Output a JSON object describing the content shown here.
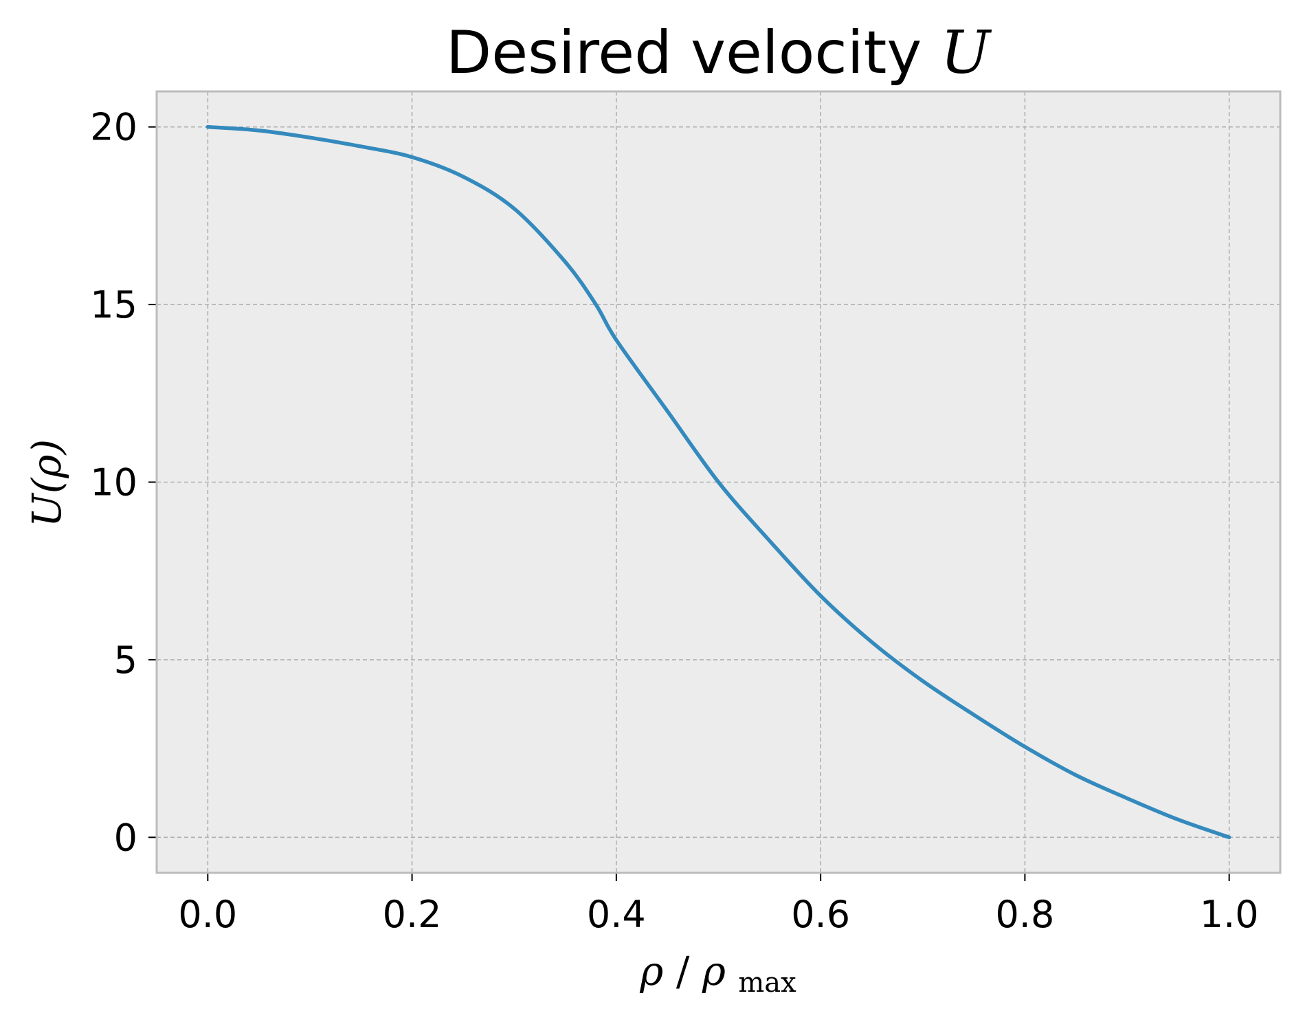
{
  "chart_data": {
    "type": "line",
    "title": "Desired velocity U",
    "title_parts": {
      "text": "Desired velocity ",
      "math": "U"
    },
    "xlabel": "ρ/ρmax",
    "xlabel_parts": {
      "rho": "ρ",
      "slash": "/",
      "rho2": "ρ",
      "sub": "max"
    },
    "ylabel": "U(ρ)",
    "xlim": [
      -0.05,
      1.05
    ],
    "ylim": [
      -1.0,
      21.0
    ],
    "xticks": [
      0.0,
      0.2,
      0.4,
      0.6,
      0.8,
      1.0
    ],
    "xtick_labels": [
      "0.0",
      "0.2",
      "0.4",
      "0.6",
      "0.8",
      "1.0"
    ],
    "yticks": [
      0,
      5,
      10,
      15,
      20
    ],
    "ytick_labels": [
      "0",
      "5",
      "10",
      "15",
      "20"
    ],
    "grid": true,
    "background_color": "#ececec",
    "grid_color": "#b0b0b0",
    "spine_color": "#bcbcbc",
    "series": [
      {
        "color": "#348abd",
        "x": [
          0.0,
          0.05,
          0.1,
          0.15,
          0.2,
          0.25,
          0.3,
          0.35,
          0.38,
          0.4,
          0.45,
          0.5,
          0.55,
          0.6,
          0.65,
          0.7,
          0.75,
          0.8,
          0.85,
          0.9,
          0.95,
          1.0
        ],
        "y": [
          20.0,
          19.9,
          19.7,
          19.45,
          19.15,
          18.6,
          17.7,
          16.2,
          15.0,
          14.0,
          12.0,
          10.0,
          8.35,
          6.8,
          5.5,
          4.4,
          3.45,
          2.55,
          1.75,
          1.1,
          0.5,
          0.0
        ]
      }
    ]
  }
}
